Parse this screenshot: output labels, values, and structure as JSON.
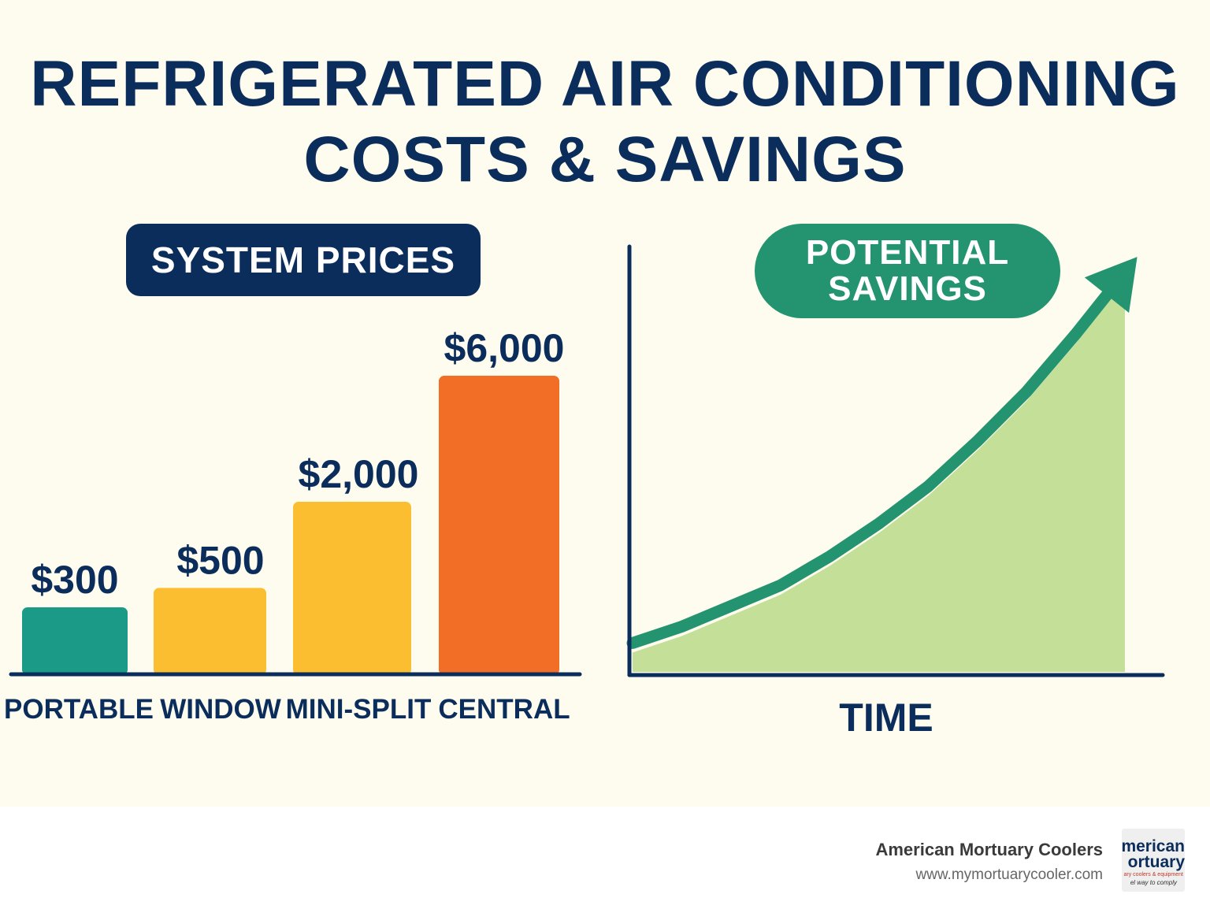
{
  "title": {
    "line1": "REFRIGERATED AIR CONDITIONING",
    "line2": "COSTS & SAVINGS"
  },
  "chart_data": [
    {
      "type": "bar",
      "title": "SYSTEM PRICES",
      "categories": [
        "PORTABLE",
        "WINDOW",
        "MINI-SPLIT",
        "CENTRAL"
      ],
      "values": [
        300,
        500,
        2000,
        6000
      ],
      "value_labels": [
        "$300",
        "$500",
        "$2,000",
        "$6,000"
      ],
      "colors": [
        "#1b9a87",
        "#fbbe30",
        "#fbbe30",
        "#f26d25"
      ],
      "xlabel": "",
      "ylabel": ""
    },
    {
      "type": "area",
      "title_line1": "POTENTIAL",
      "title_line2": "SAVINGS",
      "xlabel": "TIME",
      "ylabel": "",
      "x": [
        0,
        0.1,
        0.2,
        0.3,
        0.4,
        0.5,
        0.6,
        0.7,
        0.8,
        0.9,
        1.0
      ],
      "y": [
        0.07,
        0.11,
        0.16,
        0.21,
        0.28,
        0.36,
        0.45,
        0.56,
        0.68,
        0.82,
        0.97
      ],
      "trend": "increasing",
      "line_color": "#249470",
      "fill_color": "#c3df98"
    }
  ],
  "footer": {
    "company": "American Mortuary Coolers",
    "url": "www.mymortuarycooler.com",
    "logo_line1": "merican",
    "logo_line2": "ortuary",
    "logo_tagline1": "ary coolers & equipment",
    "logo_tagline2": "el way to comply"
  }
}
